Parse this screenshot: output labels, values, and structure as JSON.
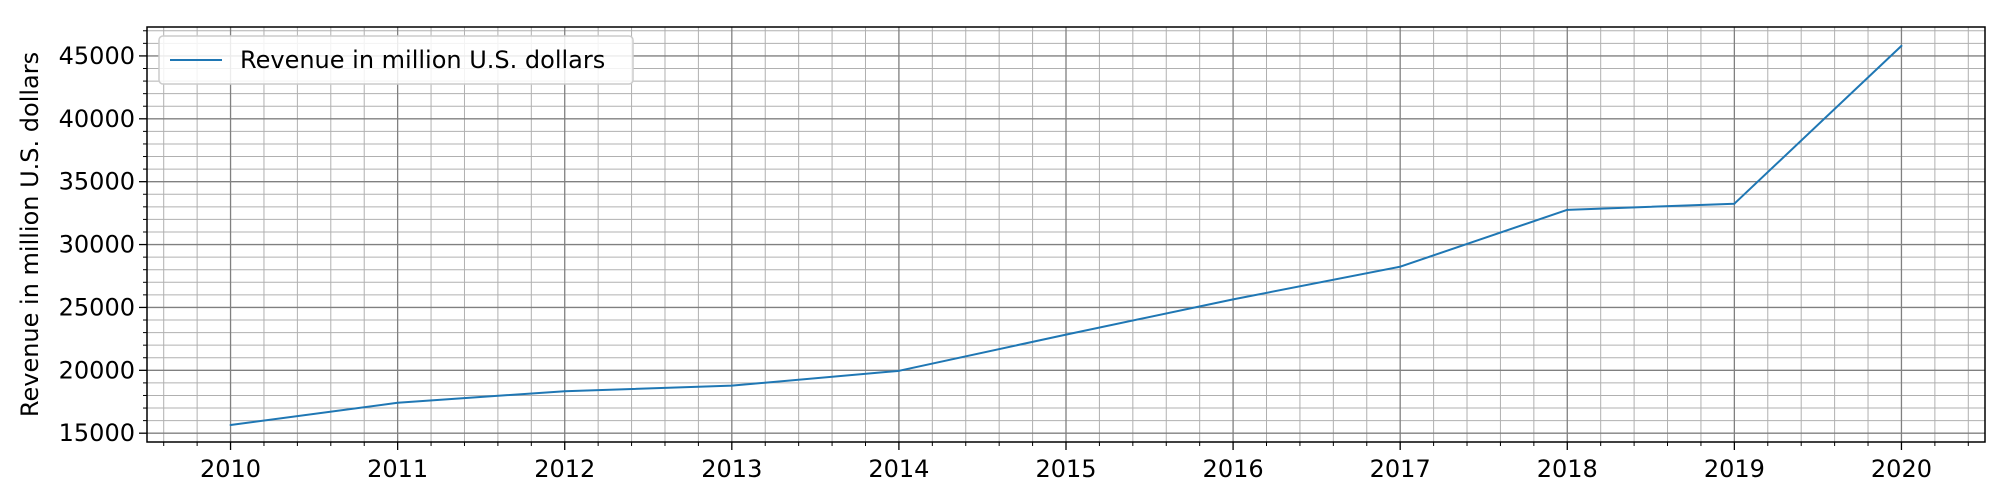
{
  "chart_data": {
    "type": "line",
    "x": [
      2010,
      2011,
      2012,
      2013,
      2014,
      2015,
      2016,
      2017,
      2018,
      2019,
      2020
    ],
    "series": [
      {
        "name": "Revenue in million U.S. dollars",
        "values": [
          15650,
          17420,
          18340,
          18780,
          19960,
          22840,
          25640,
          28240,
          32760,
          33250,
          45800
        ],
        "color": "#1f77b4"
      }
    ],
    "xlabel": "",
    "ylabel": "Revenue in million U.S. dollars",
    "xlim": [
      2009.5,
      2020.5
    ],
    "ylim": [
      14300,
      47300
    ],
    "xticks": [
      2010,
      2011,
      2012,
      2013,
      2014,
      2015,
      2016,
      2017,
      2018,
      2019,
      2020
    ],
    "yticks": [
      15000,
      20000,
      25000,
      30000,
      35000,
      40000,
      45000
    ],
    "grid": true,
    "legend": "upper-left"
  }
}
